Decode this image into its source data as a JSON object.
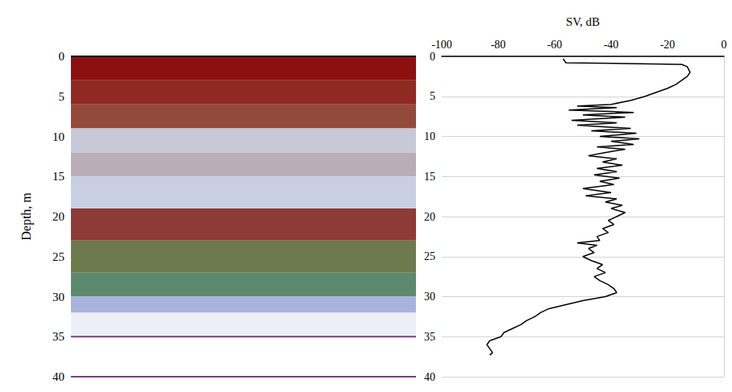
{
  "chart_data": [
    {
      "type": "echogram",
      "ylabel": "Depth, m",
      "ylim": [
        0,
        40
      ],
      "yticks": [
        0,
        5,
        10,
        15,
        20,
        25,
        30,
        35,
        40
      ],
      "tick_labels": "y",
      "bands": [
        {
          "from": 0,
          "to": 3,
          "color": "#8c1010"
        },
        {
          "from": 3,
          "to": 6,
          "color": "#8f2a22"
        },
        {
          "from": 6,
          "to": 9,
          "color": "#934a3a"
        },
        {
          "from": 9,
          "to": 12,
          "color": "#c7c9d8"
        },
        {
          "from": 12,
          "to": 15,
          "color": "#b9aeb8"
        },
        {
          "from": 15,
          "to": 19,
          "color": "#c9cfe2"
        },
        {
          "from": 19,
          "to": 23,
          "color": "#8e3a36"
        },
        {
          "from": 23,
          "to": 27,
          "color": "#6d7a4e"
        },
        {
          "from": 27,
          "to": 30,
          "color": "#5d8a6e"
        },
        {
          "from": 30,
          "to": 32,
          "color": "#a9b4dc"
        },
        {
          "from": 32,
          "to": 35,
          "color": "#eceef8"
        },
        {
          "from": 35,
          "to": 40,
          "color": "#ffffff"
        }
      ],
      "lines": [
        {
          "y": 0,
          "color": "#000000"
        },
        {
          "y": 35,
          "color": "#7b3f7f"
        },
        {
          "y": 40,
          "color": "#7b3f7f"
        }
      ]
    },
    {
      "type": "line",
      "xlabel": "SV, dB",
      "xlim": [
        -100,
        0
      ],
      "xticks": [
        -100,
        -80,
        -60,
        -40,
        -20,
        0
      ],
      "ylim": [
        0,
        40
      ],
      "yticks": [
        0,
        5,
        10,
        15,
        20,
        25,
        30,
        35,
        40
      ],
      "grid": true,
      "color": "#000000",
      "x": [
        -57,
        -56,
        -15,
        -13,
        -12,
        -13,
        -15,
        -17,
        -20,
        -24,
        -28,
        -33,
        -40,
        -52,
        -38,
        -55,
        -32,
        -50,
        -35,
        -54,
        -38,
        -52,
        -33,
        -47,
        -31,
        -44,
        -30,
        -40,
        -32,
        -45,
        -35,
        -42,
        -48,
        -38,
        -43,
        -36,
        -45,
        -38,
        -46,
        -37,
        -44,
        -39,
        -50,
        -40,
        -49,
        -38,
        -42,
        -36,
        -40,
        -35,
        -38,
        -41,
        -39,
        -43,
        -41,
        -45,
        -44,
        -52,
        -45,
        -48,
        -46,
        -50,
        -47,
        -43,
        -45,
        -42,
        -46,
        -44,
        -41,
        -39,
        -38,
        -42,
        -50,
        -56,
        -62,
        -65,
        -67,
        -70,
        -72,
        -75,
        -78,
        -79,
        -83,
        -84,
        -83,
        -82,
        -83
      ],
      "y": [
        0.3,
        0.8,
        1.0,
        1.3,
        2,
        2.5,
        3,
        3.5,
        4,
        4.5,
        5,
        5.5,
        6,
        6.2,
        6.4,
        6.7,
        7,
        7.3,
        7.6,
        8,
        8.3,
        8.6,
        9,
        9.3,
        9.6,
        10,
        10.3,
        10.6,
        11,
        11.3,
        11.6,
        12,
        12.4,
        12.8,
        13.2,
        13.6,
        14,
        14.4,
        14.8,
        15.2,
        15.6,
        16,
        16.5,
        17,
        17.4,
        17.8,
        18.2,
        18.6,
        19,
        19.5,
        20,
        20.5,
        21,
        21.5,
        22,
        22.5,
        23,
        23.3,
        23.6,
        24,
        24.5,
        25,
        25.5,
        26,
        26.5,
        27,
        27.5,
        28,
        28.5,
        29,
        29.5,
        30,
        30.5,
        31,
        31.5,
        32,
        32.5,
        33,
        33.5,
        34,
        34.5,
        35,
        35.5,
        36,
        36.5,
        37,
        37.3
      ]
    }
  ]
}
